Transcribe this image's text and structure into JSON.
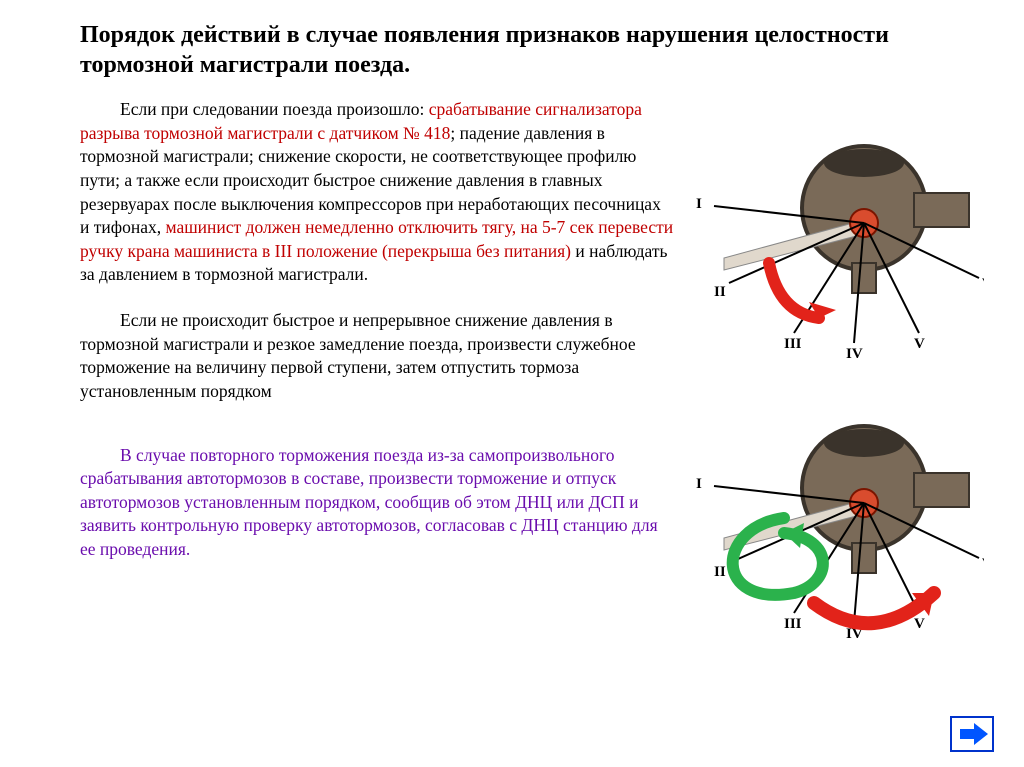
{
  "title": "Порядок действий в случае появления признаков нарушения целостности тормозной магистрали поезда.",
  "para1": {
    "seg1": "Если при следовании поезда произошло: ",
    "seg2_red": "срабатывание сигнализатора разрыва тормозной магистрали с датчиком № 418",
    "seg3": ";  падение давления в тормозной магистрали; снижение скорости, не соответствующее профилю пути; а также если происходит быстрое снижение давления в главных резервуарах после выключения компрессоров при неработающих песочницах и тифонах, ",
    "seg4_red": "машинист должен немедленно отключить тягу, на 5-7 сек перевести ручку крана машиниста в III положение (перекрыша без питания) ",
    "seg5": "и наблюдать за давлением в тормозной магистрали."
  },
  "para2": "Если не происходит быстрое и непрерывное снижение давления в тормозной магистрали и резкое замедление поезда, произвести служебное торможение на величину первой ступени, затем отпустить тормоза установленным порядком",
  "para3_purple": "В случае повторного торможения поезда из-за самопроизвольного срабатывания автотормозов в составе, произвести торможение и отпуск автотормозов установленным порядком, сообщив об этом ДНЦ или ДСП и заявить контрольную проверку автотормозов, согласовав с ДНЦ станцию для ее проведения.",
  "valve": {
    "body_color": "#7a6a58",
    "rim_color": "#3a332b",
    "hub_color": "#d94c2e",
    "line_color": "#000000",
    "positions": [
      "I",
      "II",
      "III",
      "IV",
      "V",
      "VI"
    ],
    "label_fontsize": 15,
    "arrow_red": "#e2231a",
    "arrow_green": "#2bb24c"
  },
  "nav": {
    "border": "#0033cc",
    "fill": "#0055ff"
  }
}
